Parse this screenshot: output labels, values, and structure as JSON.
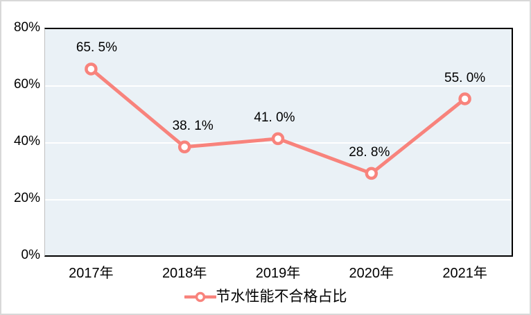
{
  "chart_data": {
    "type": "line",
    "title": "",
    "xlabel": "",
    "ylabel": "",
    "categories": [
      "2017年",
      "2018年",
      "2019年",
      "2020年",
      "2021年"
    ],
    "series": [
      {
        "name": "节水性能不合格占比",
        "values": [
          65.5,
          38.1,
          41.0,
          28.8,
          55.0
        ],
        "data_labels": [
          "65. 5%",
          "38. 1%",
          "41. 0%",
          "28. 8%",
          "55. 0%"
        ],
        "color": "#F8837C",
        "marker": "open-circle"
      }
    ],
    "ylim": [
      0,
      80
    ],
    "yticks": [
      {
        "value": 0,
        "label": "0%"
      },
      {
        "value": 20,
        "label": "20%"
      },
      {
        "value": 40,
        "label": "40%"
      },
      {
        "value": 60,
        "label": "60%"
      },
      {
        "value": 80,
        "label": "80%"
      }
    ],
    "grid": "horizontal",
    "legend_position": "bottom"
  },
  "colors": {
    "series_line": "#F8837C",
    "marker_fill": "#FFFFFF",
    "plot_background": "#EAF1F6",
    "gridline": "#FFFFFF",
    "plot_border": "#000000",
    "y_axis_line": "#BFBFBF",
    "outer_border": "#D8D8D8",
    "text": "#000000"
  }
}
